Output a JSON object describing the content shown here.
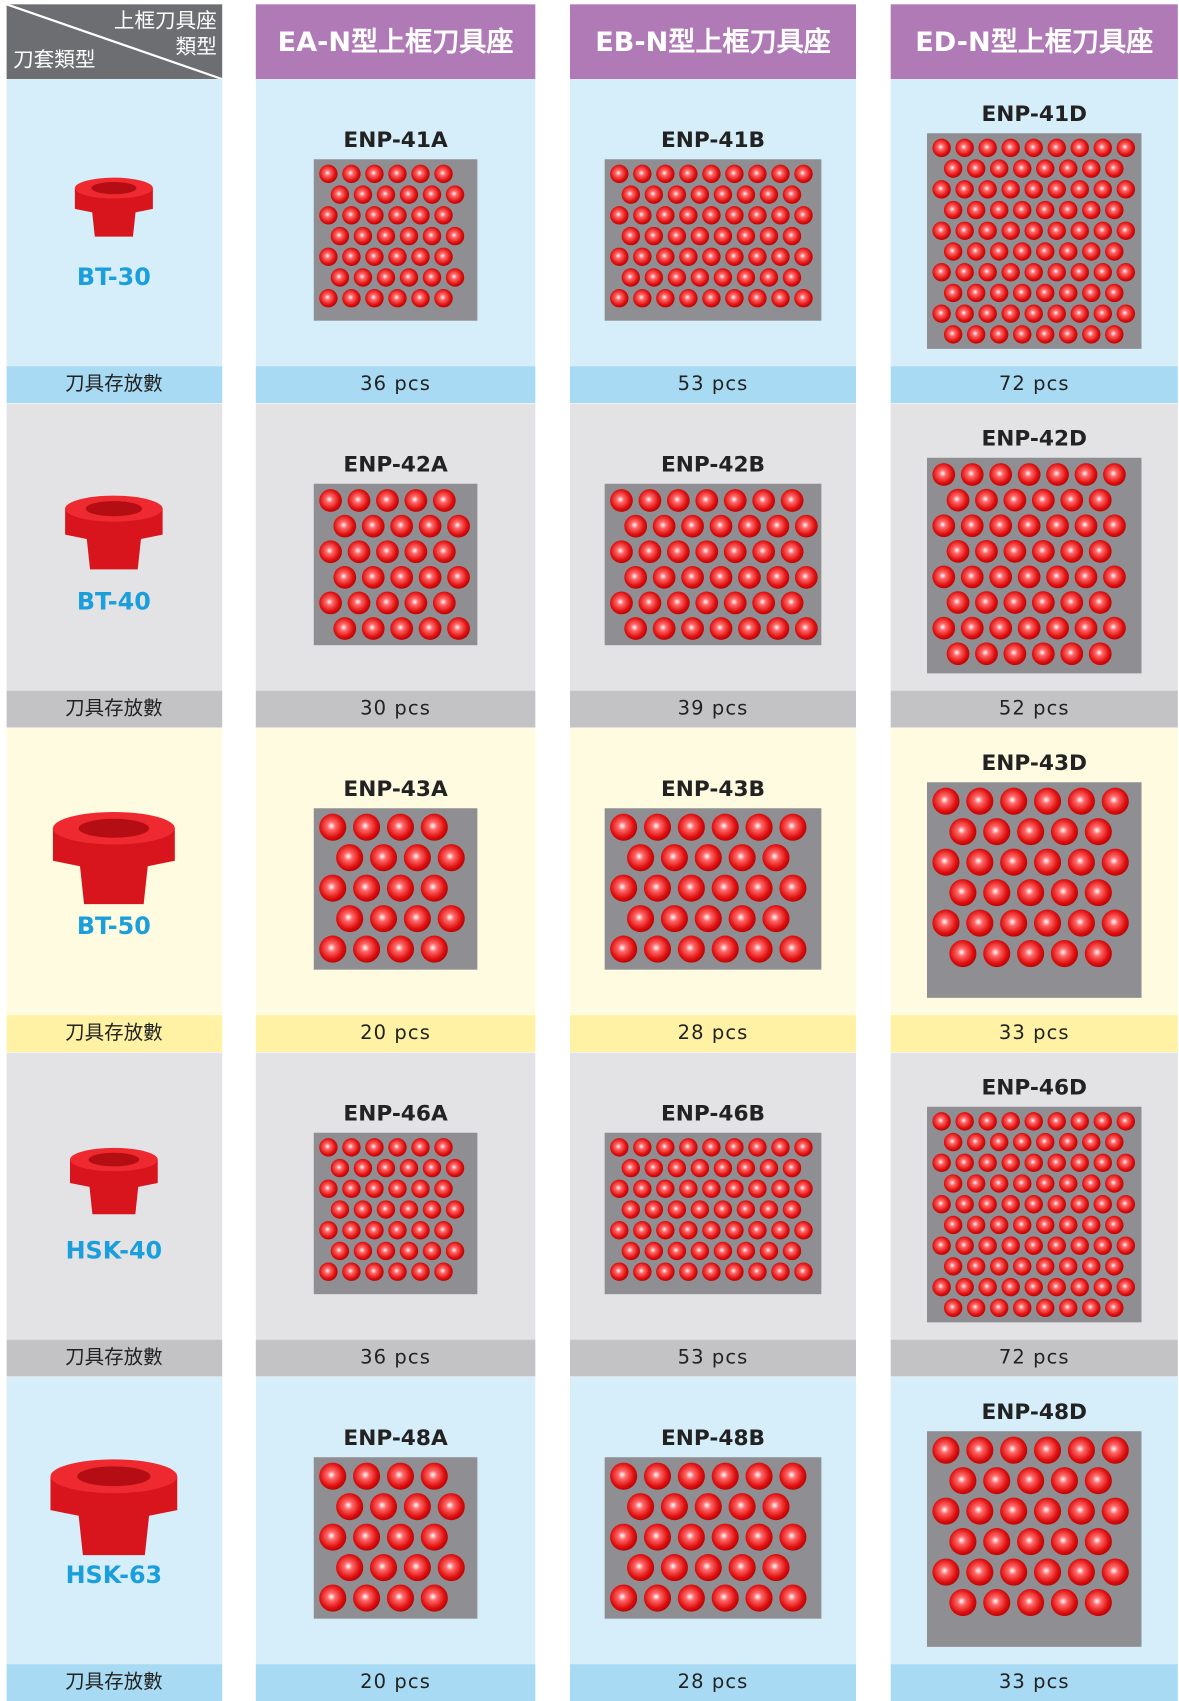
{
  "header": {
    "corner_top_line1": "上框刀具座",
    "corner_top_line2": "類型",
    "corner_bottom": "刀套類型",
    "columns": [
      "EA-N型上框刀具座",
      "EB-N型上框刀具座",
      "ED-N型上框刀具座"
    ]
  },
  "rows": [
    {
      "tool": "BT-30",
      "label": "刀具存放數",
      "models": [
        "ENP-41A",
        "ENP-41B",
        "ENP-41D"
      ],
      "capacities": [
        "36 pcs",
        "53 pcs",
        "72 pcs"
      ]
    },
    {
      "tool": "BT-40",
      "label": "刀具存放數",
      "models": [
        "ENP-42A",
        "ENP-42B",
        "ENP-42D"
      ],
      "capacities": [
        "30 pcs",
        "39 pcs",
        "52 pcs"
      ]
    },
    {
      "tool": "BT-50",
      "label": "刀具存放數",
      "models": [
        "ENP-43A",
        "ENP-43B",
        "ENP-43D"
      ],
      "capacities": [
        "20 pcs",
        "28 pcs",
        "33 pcs"
      ]
    },
    {
      "tool": "HSK-40",
      "label": "刀具存放數",
      "models": [
        "ENP-46A",
        "ENP-46B",
        "ENP-46D"
      ],
      "capacities": [
        "36 pcs",
        "53 pcs",
        "72 pcs"
      ]
    },
    {
      "tool": "HSK-63",
      "label": "刀具存放數",
      "models": [
        "ENP-48A",
        "ENP-48B",
        "ENP-48D"
      ],
      "capacities": [
        "20 pcs",
        "28 pcs",
        "33 pcs"
      ]
    }
  ]
}
